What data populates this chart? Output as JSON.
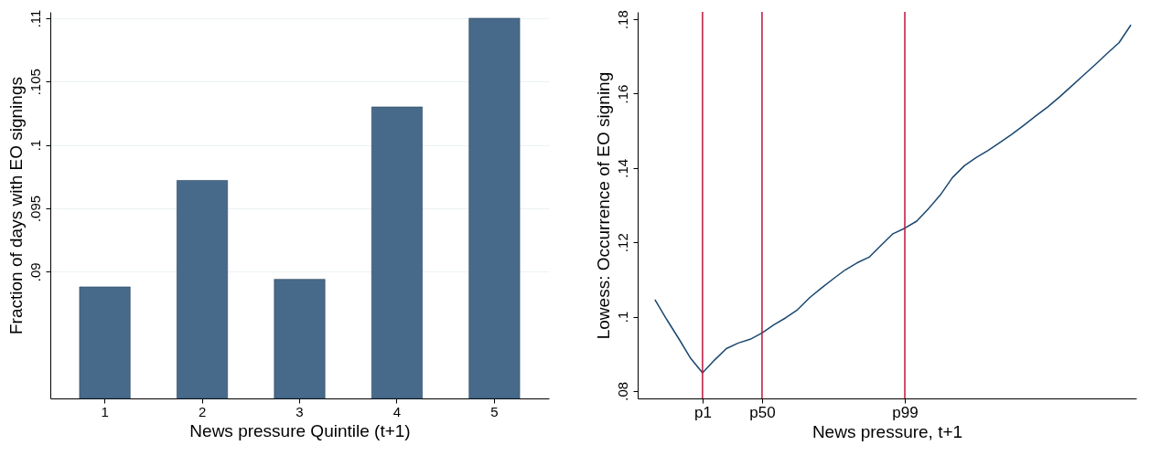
{
  "chart_data": [
    {
      "type": "bar",
      "xlabel": "News pressure Quintile (t+1)",
      "ylabel": "Fraction of days with EO signings",
      "categories": [
        "1",
        "2",
        "3",
        "4",
        "5"
      ],
      "values": [
        0.0888,
        0.0972,
        0.0894,
        0.103,
        0.11
      ],
      "color": "#476a8a",
      "ylim": [
        0.08,
        0.1105
      ],
      "yticks": [
        {
          "value": 0.09,
          "label": ".09"
        },
        {
          "value": 0.095,
          "label": ".095"
        },
        {
          "value": 0.1,
          "label": ".1"
        },
        {
          "value": 0.105,
          "label": ".105"
        },
        {
          "value": 0.11,
          "label": ".11"
        }
      ],
      "grid": "y"
    },
    {
      "type": "line",
      "xlabel": "News pressure, t+1",
      "ylabel": "Lowess: Occurrence of EO signing",
      "color": "#1a476f",
      "ylim": [
        0.078,
        0.182
      ],
      "yticks": [
        {
          "value": 0.08,
          "label": ".08"
        },
        {
          "value": 0.1,
          "label": ".1"
        },
        {
          "value": 0.12,
          "label": ".12"
        },
        {
          "value": 0.14,
          "label": ".14"
        },
        {
          "value": 0.16,
          "label": ".16"
        },
        {
          "value": 0.18,
          "label": ".18"
        }
      ],
      "categories": [
        null,
        null,
        null,
        null,
        null,
        "p1",
        null,
        null,
        null,
        null,
        "p50",
        null,
        null,
        null,
        null,
        null,
        null,
        null,
        null,
        null,
        null,
        null,
        "p99",
        null,
        null,
        null,
        null,
        null,
        null,
        null,
        null,
        null,
        null,
        null,
        null,
        null,
        null,
        null,
        null,
        null,
        null,
        null
      ],
      "values": [
        null,
        0.1046,
        0.0992,
        0.0941,
        0.0888,
        0.0849,
        0.0883,
        0.0914,
        0.0929,
        0.0939,
        0.0956,
        0.0978,
        0.0997,
        0.1019,
        0.1051,
        0.1077,
        0.1102,
        0.1126,
        0.1145,
        0.116,
        0.1192,
        0.1223,
        0.1238,
        0.1257,
        0.1291,
        0.1328,
        0.1374,
        0.1406,
        0.1428,
        0.1447,
        0.1469,
        0.1491,
        0.1515,
        0.154,
        0.1564,
        0.1591,
        0.162,
        0.1649,
        0.1678,
        0.1708,
        0.1737,
        0.1785
      ],
      "ref_lines": [
        {
          "axis": "x",
          "value": "p1",
          "color": "#c0143c"
        },
        {
          "axis": "x",
          "value": "p50",
          "color": "#c0143c"
        },
        {
          "axis": "x",
          "value": "p99",
          "color": "#c0143c"
        }
      ]
    }
  ]
}
